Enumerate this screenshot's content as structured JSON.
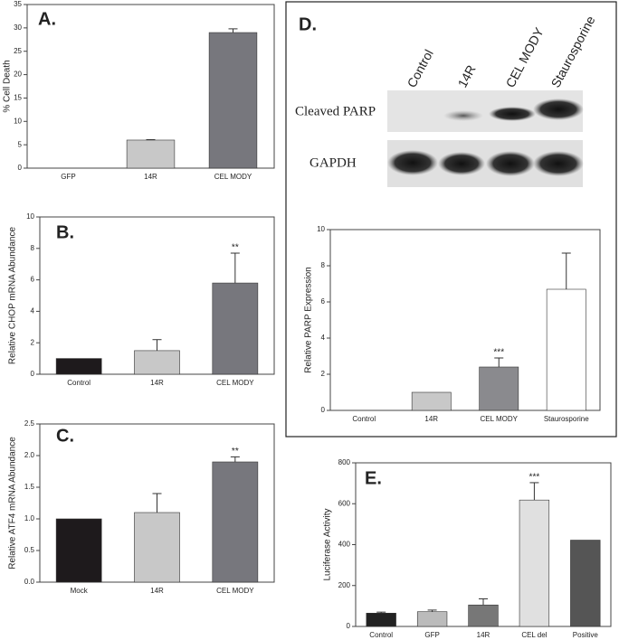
{
  "chart_data": [
    {
      "type": "bar",
      "panel": "A.",
      "ylabel": "% Cell Death",
      "categories": [
        "GFP",
        "14R",
        "CEL MODY"
      ],
      "values": [
        0,
        6,
        29
      ],
      "errors": [
        null,
        0.1,
        0.8
      ],
      "colors": [
        "#c8c8c8",
        "#c8c8c8",
        "#77777d"
      ],
      "ylim": [
        0,
        35
      ],
      "yticks": [
        0,
        5,
        10,
        15,
        20,
        25,
        30,
        35
      ]
    },
    {
      "type": "bar",
      "panel": "B.",
      "ylabel": "Relative CHOP mRNA Abundance",
      "categories": [
        "Control",
        "14R",
        "CEL MODY"
      ],
      "values": [
        1,
        1.5,
        5.8
      ],
      "errors": [
        null,
        0.7,
        1.9
      ],
      "colors": [
        "#1e1a1c",
        "#c8c8c8",
        "#77777d"
      ],
      "annotation": {
        "text": "**",
        "category": "CEL MODY"
      },
      "ylim": [
        0,
        10
      ],
      "yticks": [
        0,
        2,
        4,
        6,
        8,
        10
      ]
    },
    {
      "type": "bar",
      "panel": "C.",
      "ylabel": "Relative ATF4 mRNA Abundance",
      "categories": [
        "Mock",
        "14R",
        "CEL MODY"
      ],
      "values": [
        1.0,
        1.1,
        1.9
      ],
      "errors": [
        null,
        0.3,
        0.08
      ],
      "colors": [
        "#1e1a1c",
        "#c8c8c8",
        "#77777d"
      ],
      "annotation": {
        "text": "**",
        "category": "CEL MODY"
      },
      "ylim": [
        0,
        2.5
      ],
      "yticks": [
        {
          "value": 0,
          "label": "0.0"
        },
        0.5,
        {
          "value": 1,
          "label": "1.0"
        },
        1.5,
        {
          "value": 2,
          "label": "2.0"
        },
        2.5
      ]
    },
    {
      "type": "bar",
      "panel": "D.",
      "ylabel": "Relative PARP Expression",
      "categories": [
        "Control",
        "14R",
        "CEL MODY",
        "Staurosporine"
      ],
      "values": [
        0,
        1,
        2.4,
        6.7
      ],
      "errors": [
        null,
        null,
        0.5,
        2.0
      ],
      "colors": [
        "#c8c8c8",
        "#c8c8c8",
        "#8a8a8e",
        "#ffffff"
      ],
      "annotation": {
        "text": "***",
        "category": "CEL MODY"
      },
      "ylim": [
        0,
        10
      ],
      "yticks": [
        0,
        2,
        4,
        6,
        8,
        10
      ]
    },
    {
      "type": "bar",
      "panel": "E.",
      "ylabel": "Luciferase Activity",
      "categories": [
        "Control",
        "GFP",
        "14R",
        "CEL del",
        "Positive"
      ],
      "values": [
        65,
        72,
        105,
        618,
        422
      ],
      "errors": [
        5,
        8,
        30,
        85,
        null
      ],
      "colors": [
        "#222222",
        "#bbbbbb",
        "#777777",
        "#e0e0e0",
        "#555555"
      ],
      "annotation": {
        "text": "***",
        "category": "CEL del"
      },
      "ylim": [
        0,
        800
      ],
      "yticks": [
        0,
        200,
        400,
        600,
        800
      ]
    }
  ],
  "blot": {
    "lanes": [
      "Control",
      "14R",
      "CEL MODY",
      "Staurosporine"
    ],
    "rows": [
      "Cleaved PARP",
      "GAPDH"
    ]
  }
}
